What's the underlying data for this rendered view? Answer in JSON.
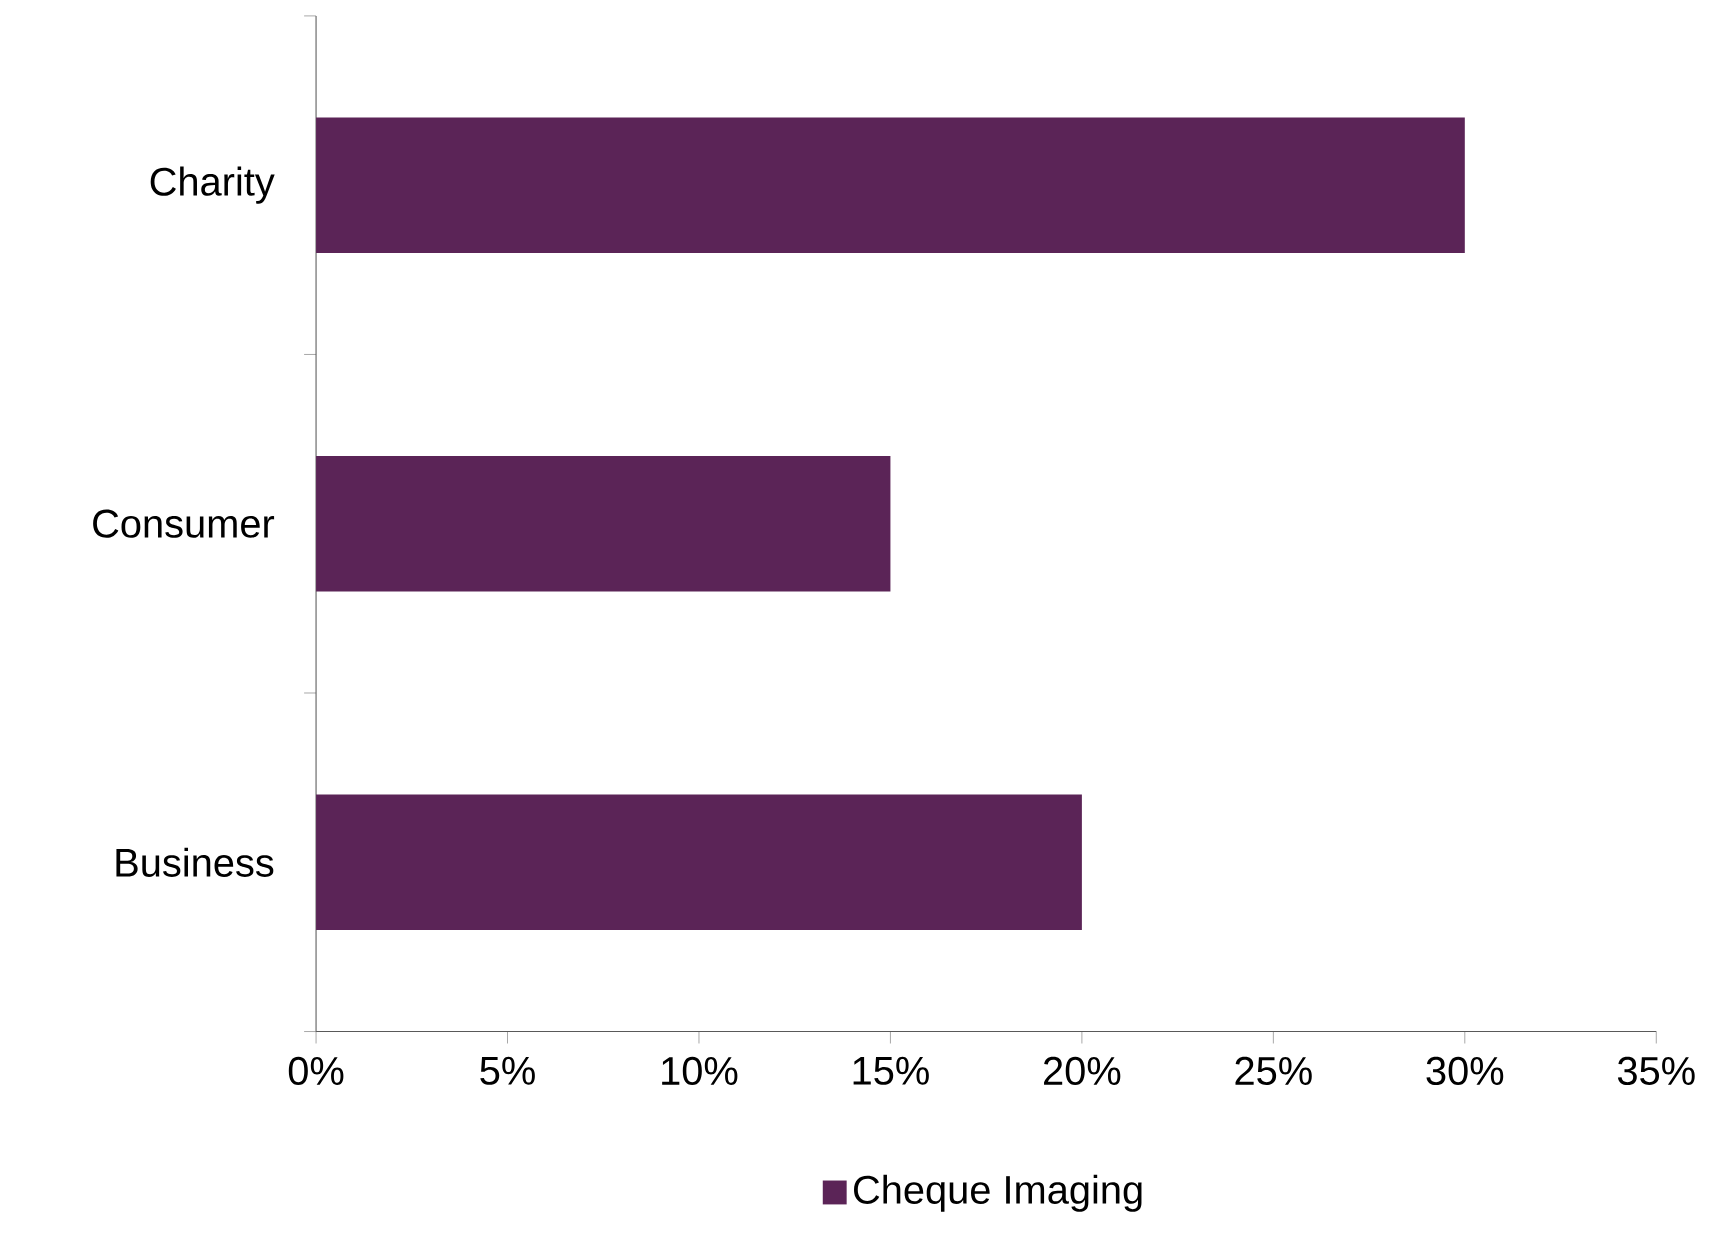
{
  "chart_data": {
    "type": "bar",
    "orientation": "horizontal",
    "categories": [
      "Charity",
      "Consumer",
      "Business"
    ],
    "series": [
      {
        "name": "Cheque Imaging",
        "color": "#5b2457",
        "values": [
          30,
          15,
          20
        ]
      }
    ],
    "xlim": [
      0,
      35
    ],
    "xticks": [
      {
        "value": 0,
        "label": "0%"
      },
      {
        "value": 5,
        "label": "5%"
      },
      {
        "value": 10,
        "label": "10%"
      },
      {
        "value": 15,
        "label": "15%"
      },
      {
        "value": 20,
        "label": "20%"
      },
      {
        "value": 25,
        "label": "25%"
      },
      {
        "value": 30,
        "label": "30%"
      },
      {
        "value": 35,
        "label": "35%"
      }
    ],
    "legend": "bottom"
  }
}
